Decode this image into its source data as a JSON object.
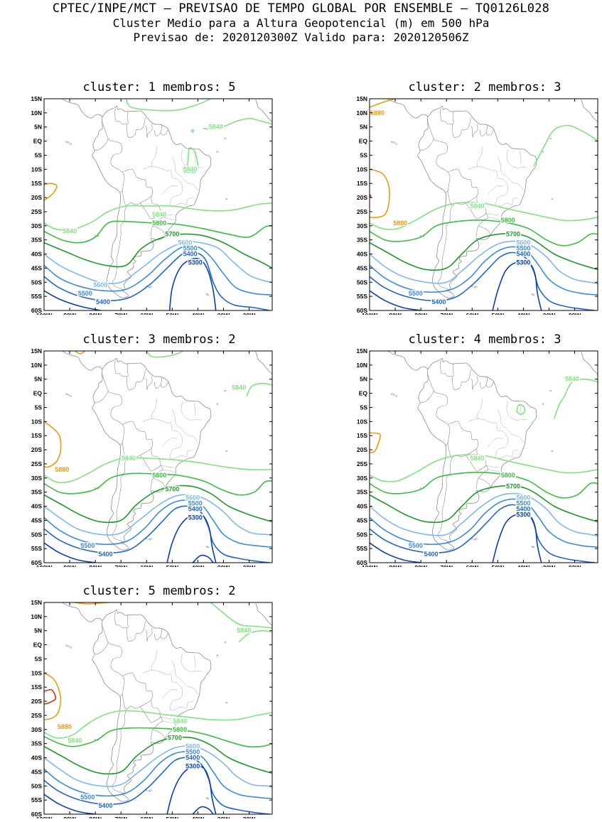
{
  "header": {
    "line1": "CPTEC/INPE/MCT – PREVISAO DE TEMPO GLOBAL POR ENSEMBLE – TQ0126L028",
    "line2": "Cluster Medio para a Altura Geopotencial (m) em 500 hPa",
    "line3": "Previsao de: 2020120300Z   Valido para: 2020120506Z"
  },
  "axes": {
    "lat_ticks": [
      "15N",
      "10N",
      "5N",
      "EQ",
      "5S",
      "10S",
      "15S",
      "20S",
      "25S",
      "30S",
      "35S",
      "40S",
      "45S",
      "50S",
      "55S",
      "60S"
    ],
    "lon_ticks": [
      "100W",
      "90W",
      "80W",
      "70W",
      "60W",
      "50W",
      "40W",
      "30W",
      "20W"
    ]
  },
  "colors": {
    "c5300": "#0a3fb0",
    "c5400": "#1e64cf",
    "c5500": "#3b8be0",
    "c5600": "#7fb8ee",
    "c5700": "#1f9a2a",
    "c5800": "#39bf3e",
    "c5840": "#7ee57e",
    "c5880": "#f09a10",
    "c5920": "#d9301a",
    "coast": "#8c8c8c"
  },
  "panels": [
    {
      "title": "cluster: 1   membros: 5",
      "labels": [
        {
          "text": "5840",
          "lon": -33,
          "lat": 5,
          "color": "c5840"
        },
        {
          "text": "5840",
          "lon": -43,
          "lat": -10,
          "color": "c5840"
        },
        {
          "text": "5840",
          "lon": -90,
          "lat": -32,
          "color": "c5840"
        },
        {
          "text": "5840",
          "lon": -55,
          "lat": -26,
          "color": "c5840"
        },
        {
          "text": "5800",
          "lon": -55,
          "lat": -29,
          "color": "c5800"
        },
        {
          "text": "5700",
          "lon": -50,
          "lat": -33,
          "color": "c5700"
        },
        {
          "text": "5600",
          "lon": -45,
          "lat": -36,
          "color": "c5600"
        },
        {
          "text": "5500",
          "lon": -43,
          "lat": -38,
          "color": "c5500"
        },
        {
          "text": "5400",
          "lon": -43,
          "lat": -40,
          "color": "c5400"
        },
        {
          "text": "5300",
          "lon": -41,
          "lat": -43,
          "color": "c5300"
        },
        {
          "text": "5600",
          "lon": -78,
          "lat": -51,
          "color": "c5600"
        },
        {
          "text": "5500",
          "lon": -84,
          "lat": -54,
          "color": "c5500"
        },
        {
          "text": "5400",
          "lon": -77,
          "lat": -57,
          "color": "c5400"
        }
      ]
    },
    {
      "title": "cluster: 2   membros: 3",
      "labels": [
        {
          "text": "5880",
          "lon": -97,
          "lat": 10,
          "color": "c5880"
        },
        {
          "text": "5880",
          "lon": -88,
          "lat": -29,
          "color": "c5880"
        },
        {
          "text": "5840",
          "lon": -58,
          "lat": -23,
          "color": "c5840"
        },
        {
          "text": "5800",
          "lon": -46,
          "lat": -28,
          "color": "c5800"
        },
        {
          "text": "5700",
          "lon": -44,
          "lat": -33,
          "color": "c5700"
        },
        {
          "text": "5600",
          "lon": -40,
          "lat": -36,
          "color": "c5600"
        },
        {
          "text": "5500",
          "lon": -40,
          "lat": -38,
          "color": "c5500"
        },
        {
          "text": "5400",
          "lon": -40,
          "lat": -40,
          "color": "c5400"
        },
        {
          "text": "5300",
          "lon": -40,
          "lat": -43,
          "color": "c5300"
        },
        {
          "text": "5500",
          "lon": -82,
          "lat": -54,
          "color": "c5500"
        },
        {
          "text": "5400",
          "lon": -73,
          "lat": -57,
          "color": "c5400"
        }
      ]
    },
    {
      "title": "cluster: 3   membros: 2",
      "labels": [
        {
          "text": "5840",
          "lon": -24,
          "lat": 2,
          "color": "c5840"
        },
        {
          "text": "5880",
          "lon": -93,
          "lat": -27,
          "color": "c5880"
        },
        {
          "text": "5840",
          "lon": -67,
          "lat": -23,
          "color": "c5840"
        },
        {
          "text": "5800",
          "lon": -55,
          "lat": -29,
          "color": "c5800"
        },
        {
          "text": "5700",
          "lon": -50,
          "lat": -34,
          "color": "c5700"
        },
        {
          "text": "5600",
          "lon": -42,
          "lat": -37,
          "color": "c5600"
        },
        {
          "text": "5500",
          "lon": -41,
          "lat": -39,
          "color": "c5500"
        },
        {
          "text": "5400",
          "lon": -41,
          "lat": -41,
          "color": "c5400"
        },
        {
          "text": "5300",
          "lon": -41,
          "lat": -44,
          "color": "c5300"
        },
        {
          "text": "5500",
          "lon": -83,
          "lat": -54,
          "color": "c5500"
        },
        {
          "text": "5400",
          "lon": -76,
          "lat": -57,
          "color": "c5400"
        }
      ]
    },
    {
      "title": "cluster: 4   membros: 3",
      "labels": [
        {
          "text": "5840",
          "lon": -21,
          "lat": 5,
          "color": "c5840"
        },
        {
          "text": "5840",
          "lon": -58,
          "lat": -23,
          "color": "c5840"
        },
        {
          "text": "5800",
          "lon": -46,
          "lat": -29,
          "color": "c5800"
        },
        {
          "text": "5700",
          "lon": -44,
          "lat": -33,
          "color": "c5700"
        },
        {
          "text": "5600",
          "lon": -40,
          "lat": -37,
          "color": "c5600"
        },
        {
          "text": "5500",
          "lon": -40,
          "lat": -39,
          "color": "c5500"
        },
        {
          "text": "5400",
          "lon": -40,
          "lat": -41,
          "color": "c5400"
        },
        {
          "text": "5300",
          "lon": -40,
          "lat": -43,
          "color": "c5300"
        },
        {
          "text": "5500",
          "lon": -82,
          "lat": -54,
          "color": "c5500"
        },
        {
          "text": "5400",
          "lon": -76,
          "lat": -57,
          "color": "c5400"
        }
      ]
    },
    {
      "title": "cluster: 5   membros: 2",
      "labels": [
        {
          "text": "5840",
          "lon": -22,
          "lat": 5,
          "color": "c5840"
        },
        {
          "text": "5880",
          "lon": -92,
          "lat": -29,
          "color": "c5880"
        },
        {
          "text": "5840",
          "lon": -88,
          "lat": -34,
          "color": "c5840"
        },
        {
          "text": "5840",
          "lon": -47,
          "lat": -27,
          "color": "c5840"
        },
        {
          "text": "5800",
          "lon": -47,
          "lat": -30,
          "color": "c5800"
        },
        {
          "text": "5700",
          "lon": -49,
          "lat": -33,
          "color": "c5700"
        },
        {
          "text": "5600",
          "lon": -42,
          "lat": -36,
          "color": "c5600"
        },
        {
          "text": "5500",
          "lon": -42,
          "lat": -38,
          "color": "c5500"
        },
        {
          "text": "5400",
          "lon": -42,
          "lat": -40,
          "color": "c5400"
        },
        {
          "text": "5300",
          "lon": -42,
          "lat": -43,
          "color": "c5300"
        },
        {
          "text": "5500",
          "lon": -83,
          "lat": -54,
          "color": "c5500"
        },
        {
          "text": "5400",
          "lon": -76,
          "lat": -57,
          "color": "c5400"
        }
      ]
    }
  ]
}
